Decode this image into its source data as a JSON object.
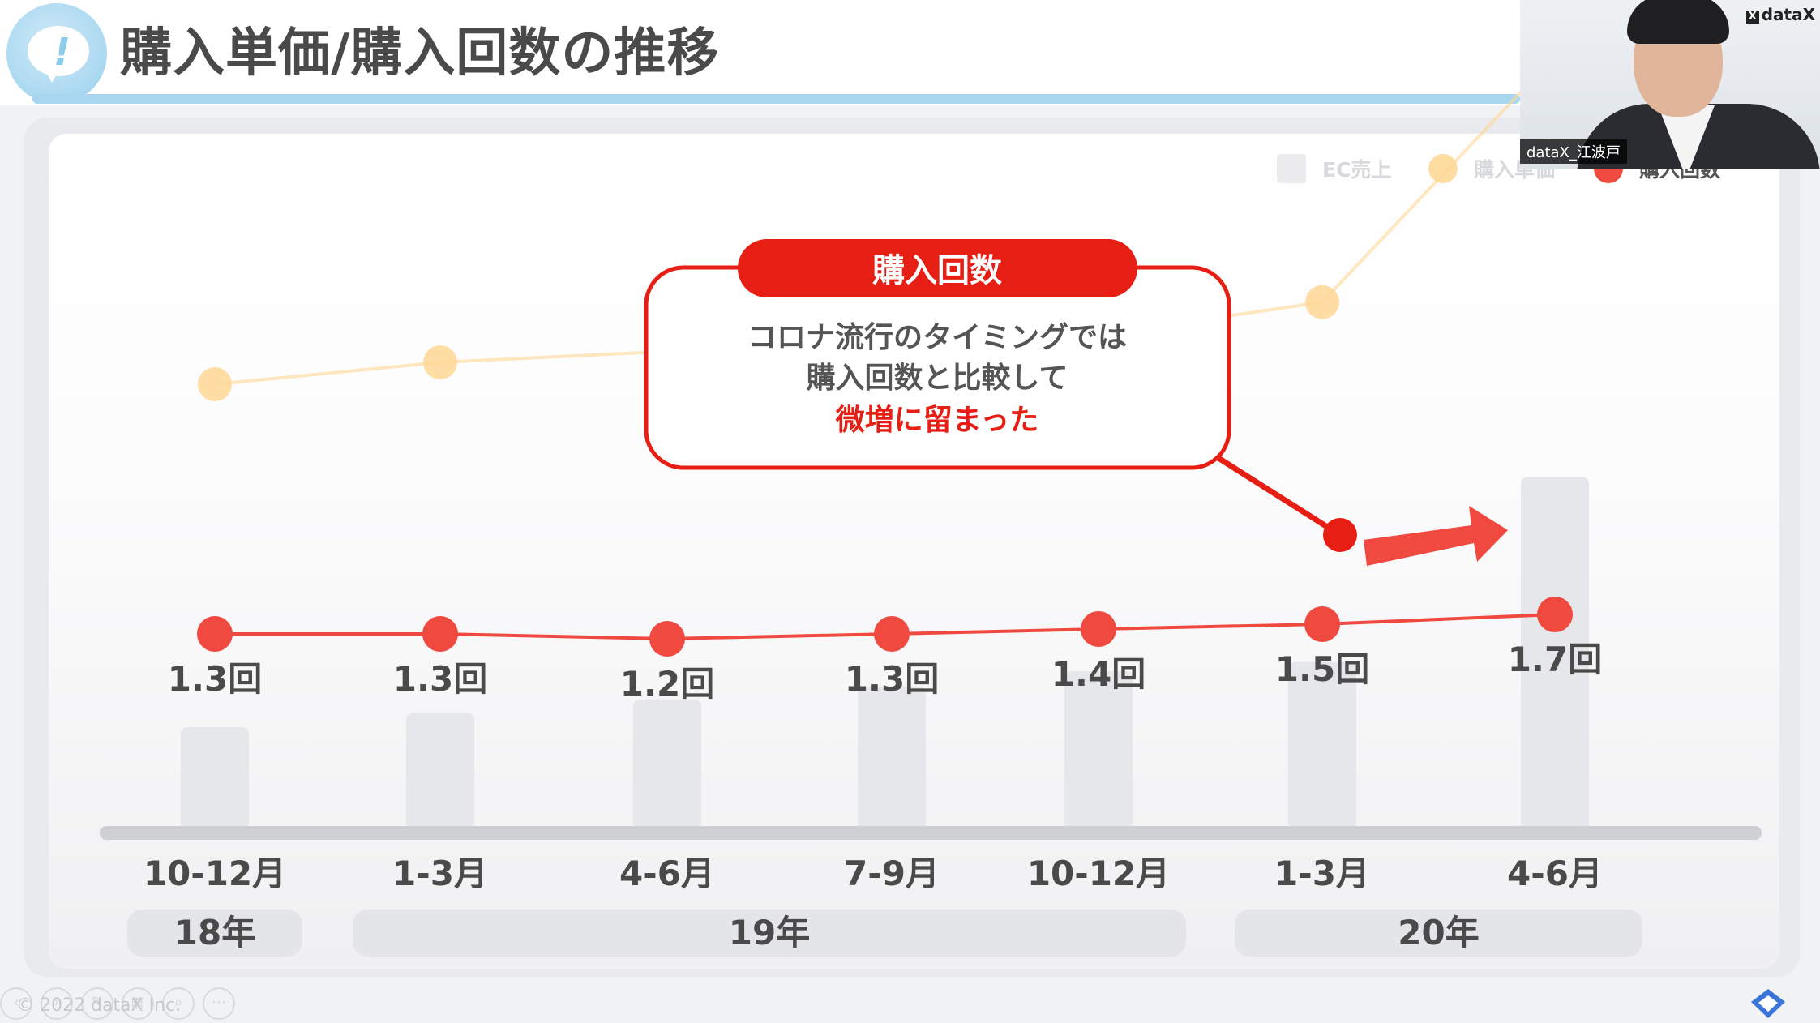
{
  "header": {
    "title": "購入単価/購入回数の推移",
    "logo_icon": "exclamation-bubble-icon"
  },
  "legend": [
    {
      "label": "EC売上",
      "color": "#ececee",
      "shape": "square"
    },
    {
      "label": "購入単価",
      "color": "#ffdca0",
      "shape": "circle"
    },
    {
      "label": "購入回数",
      "color": "#f04a40",
      "shape": "circle"
    }
  ],
  "chart_data": {
    "type": "line",
    "categories": [
      "10-12月",
      "1-3月",
      "4-6月",
      "7-9月",
      "10-12月",
      "1-3月",
      "4-6月"
    ],
    "year_groups": [
      {
        "label": "18年",
        "span": [
          0,
          0
        ]
      },
      {
        "label": "19年",
        "span": [
          1,
          4
        ]
      },
      {
        "label": "20年",
        "span": [
          5,
          6
        ]
      }
    ],
    "series": [
      {
        "name": "購入回数",
        "color": "#f04a40",
        "values": [
          1.3,
          1.3,
          1.2,
          1.3,
          1.4,
          1.5,
          1.7
        ],
        "labels": [
          "1.3回",
          "1.3回",
          "1.2回",
          "1.3回",
          "1.4回",
          "1.5回",
          "1.7回"
        ]
      },
      {
        "name": "購入単価",
        "color": "#ffd795",
        "values": [
          2.6,
          2.8,
          2.9,
          3.05,
          3.05,
          3.35,
          5.6
        ]
      },
      {
        "name": "EC売上",
        "color": "#e6e7ea",
        "values": [
          85,
          97,
          109,
          120,
          133,
          141,
          300
        ]
      }
    ],
    "ylim_count": [
      0,
      3
    ]
  },
  "callout": {
    "title": "購入回数",
    "line1": "コロナ流行のタイミングでは",
    "line2": "購入回数と比較して",
    "highlight": "微増に留まった",
    "border_color": "#e61e14",
    "arrow_icon": "right-arrow-icon"
  },
  "video": {
    "brand": "dataX",
    "name": "dataX_江波戸"
  },
  "footer": {
    "copyright": "© 2022 dataX Inc.",
    "icons": [
      "prev-icon",
      "next-icon",
      "edit-icon",
      "grid-icon",
      "zoom-icon",
      "more-icon"
    ]
  }
}
